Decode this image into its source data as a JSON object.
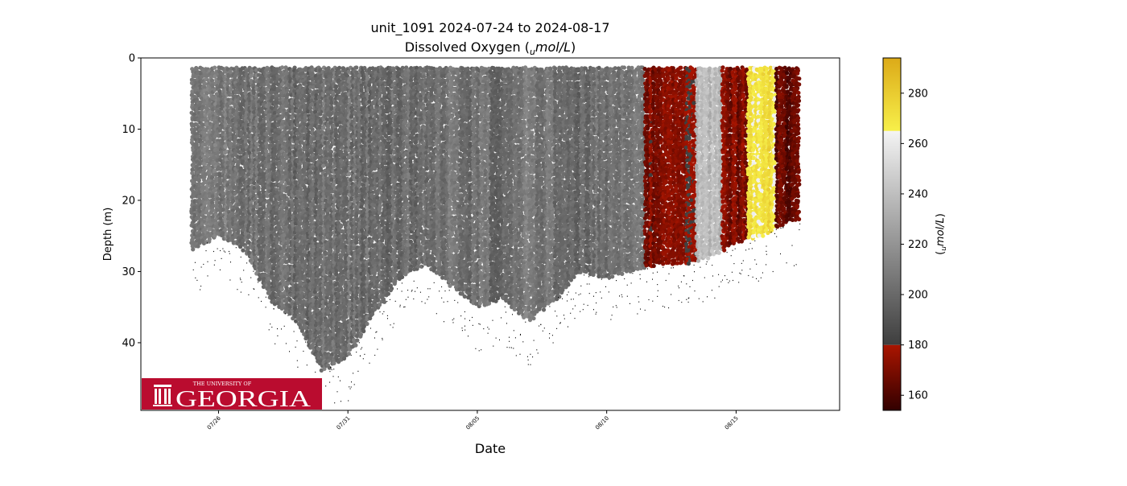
{
  "chart_data": {
    "type": "scatter",
    "title_line1": "unit_1091 2024-07-24 to 2024-08-17",
    "title_line2_pre": "Dissolved Oxygen (",
    "title_line2_unit_sub": "u",
    "title_line2_unit_main": "mol/L",
    "title_line2_post": ")",
    "xlabel": "Date",
    "ylabel": "Depth (m)",
    "x_ticks": [
      "07/26",
      "07/31",
      "08/05",
      "08/10",
      "08/15"
    ],
    "x_tick_dates": [
      "2024-07-26",
      "2024-07-31",
      "2024-08-05",
      "2024-08-10",
      "2024-08-15"
    ],
    "xlim": [
      "2024-07-23",
      "2024-08-19"
    ],
    "y_ticks": [
      "0",
      "10",
      "20",
      "30",
      "40"
    ],
    "y_tick_values": [
      0,
      10,
      20,
      30,
      40
    ],
    "ylim": [
      49.5,
      0
    ],
    "y_inverted": true,
    "colorbar": {
      "label_pre": "(",
      "label_sub": "u",
      "label_main": "mol/L",
      "label_post": ")",
      "ticks": [
        "160",
        "180",
        "200",
        "220",
        "240",
        "260",
        "280"
      ],
      "tick_values": [
        160,
        180,
        200,
        220,
        240,
        260,
        280
      ],
      "range": [
        154,
        294
      ],
      "segments": [
        {
          "from": 154,
          "to": 180,
          "colors": [
            "#320000",
            "#aa1500"
          ]
        },
        {
          "from": 180,
          "to": 265,
          "colors": [
            "#3e3e3e",
            "#f4f4f4"
          ]
        },
        {
          "from": 265,
          "to": 294,
          "colors": [
            "#f7f04a",
            "#dcaa18"
          ]
        }
      ]
    },
    "profiles": [
      {
        "date": "2024-07-25.0",
        "max_depth": 27,
        "do": 205
      },
      {
        "date": "2024-07-26.0",
        "max_depth": 25,
        "do": 207
      },
      {
        "date": "2024-07-27.0",
        "max_depth": 27,
        "do": 204
      },
      {
        "date": "2024-07-28.0",
        "max_depth": 34,
        "do": 202
      },
      {
        "date": "2024-07-29.0",
        "max_depth": 37,
        "do": 201
      },
      {
        "date": "2024-07-30.0",
        "max_depth": 44,
        "do": 203
      },
      {
        "date": "2024-07-31.0",
        "max_depth": 42,
        "do": 204
      },
      {
        "date": "2024-08-01.0",
        "max_depth": 36,
        "do": 202
      },
      {
        "date": "2024-08-02.0",
        "max_depth": 31,
        "do": 201
      },
      {
        "date": "2024-08-03.0",
        "max_depth": 29,
        "do": 200
      },
      {
        "date": "2024-08-04.0",
        "max_depth": 32,
        "do": 205
      },
      {
        "date": "2024-08-05.0",
        "max_depth": 35,
        "do": 203
      },
      {
        "date": "2024-08-06.0",
        "max_depth": 34,
        "do": 200
      },
      {
        "date": "2024-08-07.0",
        "max_depth": 37,
        "do": 208
      },
      {
        "date": "2024-08-08.0",
        "max_depth": 34,
        "do": 205
      },
      {
        "date": "2024-08-09.0",
        "max_depth": 30,
        "do": 201
      },
      {
        "date": "2024-08-10.0",
        "max_depth": 31,
        "do": 203
      },
      {
        "date": "2024-08-11.0",
        "max_depth": 30,
        "do": 204
      },
      {
        "date": "2024-08-12.0",
        "max_depth": 29,
        "do": 172
      },
      {
        "date": "2024-08-13.0",
        "max_depth": 29,
        "do": 174
      },
      {
        "date": "2024-08-14.0",
        "max_depth": 28,
        "do": 238
      },
      {
        "date": "2024-08-15.0",
        "max_depth": 26,
        "do": 170
      },
      {
        "date": "2024-08-16.0",
        "max_depth": 25,
        "do": 272
      },
      {
        "date": "2024-08-17.0",
        "max_depth": 23,
        "do": 165
      }
    ]
  },
  "logo": {
    "line1": "THE UNIVERSITY OF",
    "line2": "GEORGIA",
    "bg": "#ba0c2f"
  }
}
